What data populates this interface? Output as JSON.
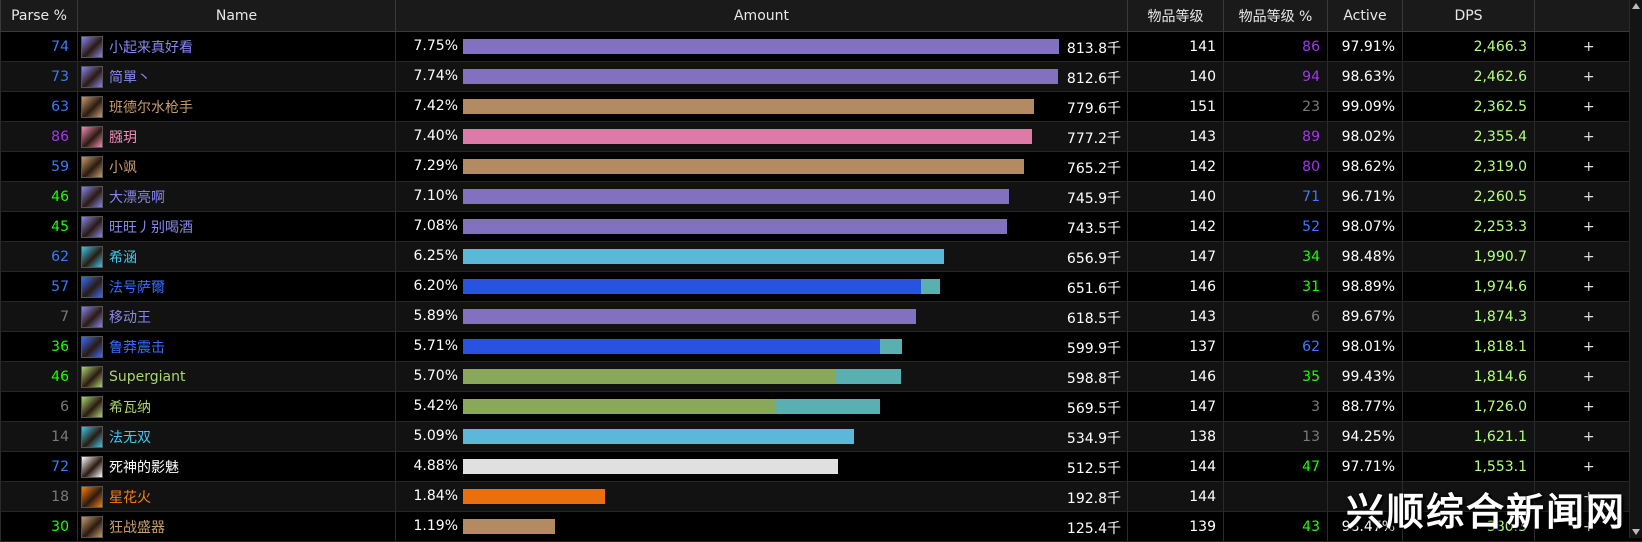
{
  "header": {
    "parse": "Parse %",
    "name": "Name",
    "amount": "Amount",
    "ilvl": "物品等级",
    "ilvl_pct": "物品等级 %",
    "active": "Active",
    "dps": "DPS"
  },
  "watermark": "兴顺综合新闻网",
  "colors": {
    "parse_orange": "#ff8000",
    "parse_purple": "#a335ee",
    "parse_blue": "#3a7bff",
    "parse_green": "#1eff00",
    "parse_gray": "#7a7a7a",
    "parse_legend": "#e5cc80",
    "dps_text": "#b3ff80"
  },
  "rows": [
    {
      "parse": "74",
      "parse_color": "#3a7bff",
      "icon": "class-spec-icon",
      "name": "小起来真好看",
      "name_color": "#8787ed",
      "pct": "7.75%",
      "amount": "813.8千",
      "amount_fraction": 0.775,
      "bar": [
        {
          "frac": 1.0,
          "color": "#8270c0"
        }
      ],
      "ilvl": "141",
      "ilvl_pct": "86",
      "ilvl_pct_color": "#a335ee",
      "active": "97.91%",
      "dps": "2,466.3"
    },
    {
      "parse": "73",
      "parse_color": "#3a7bff",
      "icon": "class-spec-icon",
      "name": "简單丶",
      "name_color": "#8787ed",
      "pct": "7.74%",
      "amount": "812.6千",
      "amount_fraction": 0.774,
      "bar": [
        {
          "frac": 1.0,
          "color": "#8270c0"
        }
      ],
      "ilvl": "140",
      "ilvl_pct": "94",
      "ilvl_pct_color": "#a335ee",
      "active": "98.63%",
      "dps": "2,462.6"
    },
    {
      "parse": "63",
      "parse_color": "#3a7bff",
      "icon": "class-spec-icon",
      "name": "班德尔水枪手",
      "name_color": "#c79c6e",
      "pct": "7.42%",
      "amount": "779.6千",
      "amount_fraction": 0.742,
      "bar": [
        {
          "frac": 1.0,
          "color": "#b48a63"
        }
      ],
      "ilvl": "151",
      "ilvl_pct": "23",
      "ilvl_pct_color": "#7a7a7a",
      "active": "99.09%",
      "dps": "2,362.5"
    },
    {
      "parse": "86",
      "parse_color": "#a335ee",
      "icon": "class-spec-icon",
      "name": "膙玥",
      "name_color": "#f58cba",
      "pct": "7.40%",
      "amount": "777.2千",
      "amount_fraction": 0.74,
      "bar": [
        {
          "frac": 1.0,
          "color": "#dc7aa8"
        }
      ],
      "ilvl": "143",
      "ilvl_pct": "89",
      "ilvl_pct_color": "#a335ee",
      "active": "98.02%",
      "dps": "2,355.4"
    },
    {
      "parse": "59",
      "parse_color": "#3a7bff",
      "icon": "class-spec-icon",
      "name": "小飒",
      "name_color": "#c79c6e",
      "pct": "7.29%",
      "amount": "765.2千",
      "amount_fraction": 0.729,
      "bar": [
        {
          "frac": 1.0,
          "color": "#b48a63"
        }
      ],
      "ilvl": "142",
      "ilvl_pct": "80",
      "ilvl_pct_color": "#a335ee",
      "active": "98.62%",
      "dps": "2,319.0"
    },
    {
      "parse": "46",
      "parse_color": "#1eff00",
      "icon": "class-spec-icon",
      "name": "大漂亮啊",
      "name_color": "#8787ed",
      "pct": "7.10%",
      "amount": "745.9千",
      "amount_fraction": 0.71,
      "bar": [
        {
          "frac": 1.0,
          "color": "#8270c0"
        }
      ],
      "ilvl": "140",
      "ilvl_pct": "71",
      "ilvl_pct_color": "#3a7bff",
      "active": "96.71%",
      "dps": "2,260.5"
    },
    {
      "parse": "45",
      "parse_color": "#1eff00",
      "icon": "class-spec-icon",
      "name": "旺旺丿别喝酒",
      "name_color": "#8787ed",
      "pct": "7.08%",
      "amount": "743.5千",
      "amount_fraction": 0.708,
      "bar": [
        {
          "frac": 1.0,
          "color": "#8270c0"
        }
      ],
      "ilvl": "142",
      "ilvl_pct": "52",
      "ilvl_pct_color": "#3a7bff",
      "active": "98.07%",
      "dps": "2,253.3"
    },
    {
      "parse": "62",
      "parse_color": "#3a7bff",
      "icon": "class-spec-icon",
      "name": "希涵",
      "name_color": "#40c7eb",
      "pct": "6.25%",
      "amount": "656.9千",
      "amount_fraction": 0.625,
      "bar": [
        {
          "frac": 1.0,
          "color": "#5cb8d8"
        }
      ],
      "ilvl": "147",
      "ilvl_pct": "34",
      "ilvl_pct_color": "#1eff00",
      "active": "98.48%",
      "dps": "1,990.7"
    },
    {
      "parse": "57",
      "parse_color": "#3a7bff",
      "icon": "class-spec-icon",
      "name": "法号萨爾",
      "name_color": "#3a6cff",
      "pct": "6.20%",
      "amount": "651.6千",
      "amount_fraction": 0.62,
      "bar": [
        {
          "frac": 0.96,
          "color": "#2a52e0"
        },
        {
          "frac": 0.04,
          "color": "#5ab0b0"
        }
      ],
      "ilvl": "146",
      "ilvl_pct": "31",
      "ilvl_pct_color": "#1eff00",
      "active": "98.89%",
      "dps": "1,974.6"
    },
    {
      "parse": "7",
      "parse_color": "#7a7a7a",
      "icon": "class-spec-icon",
      "name": "移动王",
      "name_color": "#8787ed",
      "pct": "5.89%",
      "amount": "618.5千",
      "amount_fraction": 0.589,
      "bar": [
        {
          "frac": 1.0,
          "color": "#8270c0"
        }
      ],
      "ilvl": "143",
      "ilvl_pct": "6",
      "ilvl_pct_color": "#7a7a7a",
      "active": "89.67%",
      "dps": "1,874.3"
    },
    {
      "parse": "36",
      "parse_color": "#1eff00",
      "icon": "class-spec-icon",
      "name": "鲁莽震击",
      "name_color": "#3a6cff",
      "pct": "5.71%",
      "amount": "599.9千",
      "amount_fraction": 0.571,
      "bar": [
        {
          "frac": 0.95,
          "color": "#2a52e0"
        },
        {
          "frac": 0.05,
          "color": "#5ab0b0"
        }
      ],
      "ilvl": "137",
      "ilvl_pct": "62",
      "ilvl_pct_color": "#3a7bff",
      "active": "98.01%",
      "dps": "1,818.1"
    },
    {
      "parse": "46",
      "parse_color": "#1eff00",
      "icon": "class-spec-icon",
      "name": "Supergiant",
      "name_color": "#abd473",
      "pct": "5.70%",
      "amount": "598.8千",
      "amount_fraction": 0.57,
      "bar": [
        {
          "frac": 0.85,
          "color": "#8aa85a"
        },
        {
          "frac": 0.15,
          "color": "#5ab0b0"
        }
      ],
      "ilvl": "146",
      "ilvl_pct": "35",
      "ilvl_pct_color": "#1eff00",
      "active": "99.43%",
      "dps": "1,814.6"
    },
    {
      "parse": "6",
      "parse_color": "#7a7a7a",
      "icon": "class-spec-icon",
      "name": "希瓦纳",
      "name_color": "#abd473",
      "pct": "5.42%",
      "amount": "569.5千",
      "amount_fraction": 0.542,
      "bar": [
        {
          "frac": 0.75,
          "color": "#8aa85a"
        },
        {
          "frac": 0.25,
          "color": "#5ab0b0"
        }
      ],
      "ilvl": "147",
      "ilvl_pct": "3",
      "ilvl_pct_color": "#7a7a7a",
      "active": "88.77%",
      "dps": "1,726.0"
    },
    {
      "parse": "14",
      "parse_color": "#7a7a7a",
      "icon": "class-spec-icon",
      "name": "法无双",
      "name_color": "#40c7eb",
      "pct": "5.09%",
      "amount": "534.9千",
      "amount_fraction": 0.509,
      "bar": [
        {
          "frac": 1.0,
          "color": "#5cb8d8"
        }
      ],
      "ilvl": "138",
      "ilvl_pct": "13",
      "ilvl_pct_color": "#7a7a7a",
      "active": "94.25%",
      "dps": "1,621.1"
    },
    {
      "parse": "72",
      "parse_color": "#3a7bff",
      "icon": "class-spec-icon",
      "name": "死神的影魅",
      "name_color": "#ffffff",
      "pct": "4.88%",
      "amount": "512.5千",
      "amount_fraction": 0.488,
      "bar": [
        {
          "frac": 1.0,
          "color": "#e0e0e0"
        }
      ],
      "ilvl": "144",
      "ilvl_pct": "47",
      "ilvl_pct_color": "#1eff00",
      "active": "97.71%",
      "dps": "1,553.1"
    },
    {
      "parse": "18",
      "parse_color": "#7a7a7a",
      "icon": "class-spec-icon",
      "name": "星花火",
      "name_color": "#ff7d0a",
      "pct": "1.84%",
      "amount": "192.8千",
      "amount_fraction": 0.184,
      "bar": [
        {
          "frac": 1.0,
          "color": "#e87010"
        }
      ],
      "ilvl": "144",
      "ilvl_pct": "",
      "ilvl_pct_color": "#7a7a7a",
      "active": "",
      "dps": ""
    },
    {
      "parse": "30",
      "parse_color": "#1eff00",
      "icon": "class-spec-icon",
      "name": "狂战盛器",
      "name_color": "#c79c6e",
      "pct": "1.19%",
      "amount": "125.4千",
      "amount_fraction": 0.119,
      "bar": [
        {
          "frac": 1.0,
          "color": "#b48a63"
        }
      ],
      "ilvl": "139",
      "ilvl_pct": "43",
      "ilvl_pct_color": "#1eff00",
      "active": "98.47%",
      "dps": "380.3"
    }
  ]
}
